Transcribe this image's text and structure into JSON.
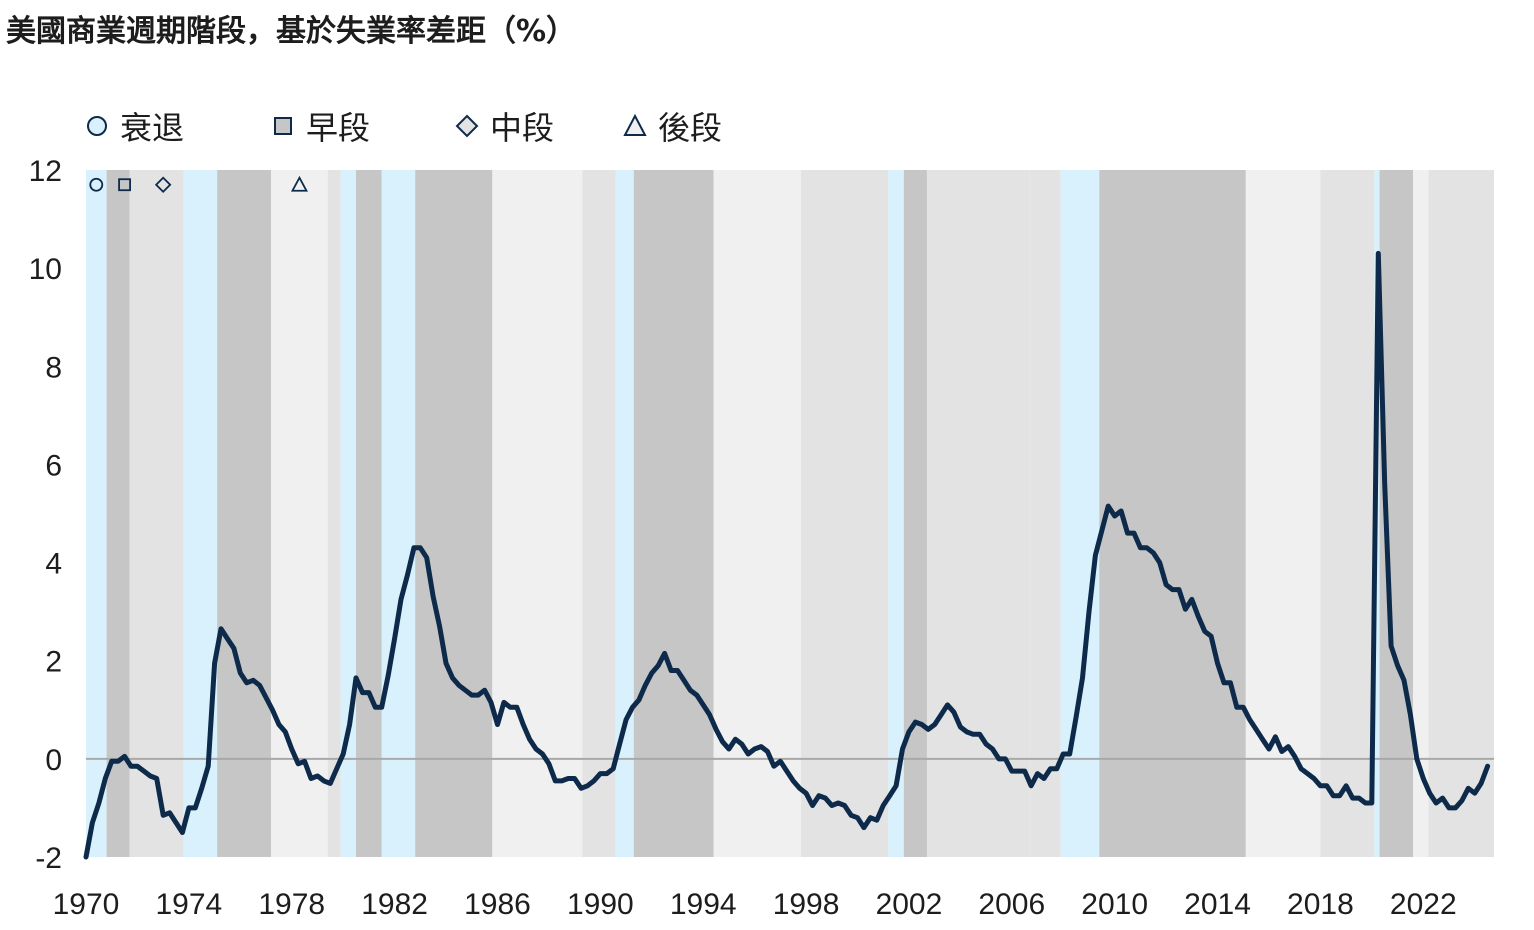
{
  "title": "美國商業週期階段，基於失業率差距（%）",
  "legend": [
    {
      "key": "recession",
      "label": "衰退",
      "marker": "circle",
      "color": "#d9f1fc"
    },
    {
      "key": "early",
      "label": "早段",
      "marker": "square",
      "color": "#c6c6c6"
    },
    {
      "key": "mid",
      "label": "中段",
      "marker": "diamond",
      "color": "#e3e3e3"
    },
    {
      "key": "late",
      "label": "後段",
      "marker": "triangle",
      "color": "#f0f0f0"
    }
  ],
  "chart_data": {
    "type": "line",
    "title": "美國商業週期階段，基於失業率差距（%）",
    "xlabel": "",
    "ylabel": "",
    "x_ticks": [
      "1970",
      "1974",
      "1978",
      "1982",
      "1986",
      "1990",
      "1994",
      "1998",
      "2002",
      "2006",
      "2010",
      "2014",
      "2018",
      "2022"
    ],
    "y_ticks": [
      "-2",
      "0",
      "2",
      "4",
      "6",
      "8",
      "10",
      "12"
    ],
    "xlim": [
      1970,
      2024.75
    ],
    "ylim": [
      -2,
      12
    ],
    "line_color": "#0d2a4a",
    "phases": [
      {
        "phase": "recession",
        "start": 1970.0,
        "end": 1970.8
      },
      {
        "phase": "early",
        "start": 1970.8,
        "end": 1971.7
      },
      {
        "phase": "mid",
        "start": 1971.7,
        "end": 1973.8
      },
      {
        "phase": "recession",
        "start": 1973.8,
        "end": 1975.1
      },
      {
        "phase": "early",
        "start": 1975.1,
        "end": 1977.2
      },
      {
        "phase": "late",
        "start": 1977.2,
        "end": 1979.4
      },
      {
        "phase": "mid",
        "start": 1979.4,
        "end": 1979.9
      },
      {
        "phase": "recession",
        "start": 1979.9,
        "end": 1980.5
      },
      {
        "phase": "early",
        "start": 1980.5,
        "end": 1981.5
      },
      {
        "phase": "recession",
        "start": 1981.5,
        "end": 1982.8
      },
      {
        "phase": "early",
        "start": 1982.8,
        "end": 1985.8
      },
      {
        "phase": "late",
        "start": 1985.8,
        "end": 1989.3
      },
      {
        "phase": "mid",
        "start": 1989.3,
        "end": 1990.6
      },
      {
        "phase": "recession",
        "start": 1990.6,
        "end": 1991.3
      },
      {
        "phase": "early",
        "start": 1991.3,
        "end": 1994.4
      },
      {
        "phase": "late",
        "start": 1994.4,
        "end": 1997.8
      },
      {
        "phase": "mid",
        "start": 1997.8,
        "end": 2001.2
      },
      {
        "phase": "recession",
        "start": 2001.2,
        "end": 2001.8
      },
      {
        "phase": "early",
        "start": 2001.8,
        "end": 2002.7
      },
      {
        "phase": "mid",
        "start": 2002.7,
        "end": 2006.7
      },
      {
        "phase": "mid",
        "start": 2006.7,
        "end": 2007.9
      },
      {
        "phase": "recession",
        "start": 2007.9,
        "end": 2009.4
      },
      {
        "phase": "early",
        "start": 2009.4,
        "end": 2015.1
      },
      {
        "phase": "late",
        "start": 2015.1,
        "end": 2018.0
      },
      {
        "phase": "mid",
        "start": 2018.0,
        "end": 2020.1
      },
      {
        "phase": "recession",
        "start": 2020.1,
        "end": 2020.3
      },
      {
        "phase": "early",
        "start": 2020.3,
        "end": 2021.6
      },
      {
        "phase": "late",
        "start": 2021.6,
        "end": 2022.2
      },
      {
        "phase": "mid",
        "start": 2022.2,
        "end": 2024.75
      }
    ],
    "series": [
      {
        "name": "失業率差距",
        "points": [
          [
            1970.0,
            -2.0
          ],
          [
            1970.25,
            -1.3
          ],
          [
            1970.5,
            -0.9
          ],
          [
            1970.75,
            -0.4
          ],
          [
            1971.0,
            -0.05
          ],
          [
            1971.25,
            -0.05
          ],
          [
            1971.5,
            0.05
          ],
          [
            1971.75,
            -0.15
          ],
          [
            1972.0,
            -0.15
          ],
          [
            1972.25,
            -0.25
          ],
          [
            1972.5,
            -0.35
          ],
          [
            1972.75,
            -0.4
          ],
          [
            1973.0,
            -1.15
          ],
          [
            1973.25,
            -1.1
          ],
          [
            1973.5,
            -1.3
          ],
          [
            1973.75,
            -1.5
          ],
          [
            1974.0,
            -1.0
          ],
          [
            1974.25,
            -1.0
          ],
          [
            1974.5,
            -0.6
          ],
          [
            1974.75,
            -0.15
          ],
          [
            1975.0,
            1.95
          ],
          [
            1975.25,
            2.65
          ],
          [
            1975.5,
            2.45
          ],
          [
            1975.75,
            2.25
          ],
          [
            1976.0,
            1.75
          ],
          [
            1976.25,
            1.55
          ],
          [
            1976.5,
            1.6
          ],
          [
            1976.75,
            1.5
          ],
          [
            1977.0,
            1.25
          ],
          [
            1977.25,
            1.0
          ],
          [
            1977.5,
            0.7
          ],
          [
            1977.75,
            0.55
          ],
          [
            1978.0,
            0.2
          ],
          [
            1978.25,
            -0.1
          ],
          [
            1978.5,
            -0.05
          ],
          [
            1978.75,
            -0.4
          ],
          [
            1979.0,
            -0.35
          ],
          [
            1979.25,
            -0.45
          ],
          [
            1979.5,
            -0.5
          ],
          [
            1979.75,
            -0.2
          ],
          [
            1980.0,
            0.1
          ],
          [
            1980.25,
            0.7
          ],
          [
            1980.5,
            1.65
          ],
          [
            1980.75,
            1.35
          ],
          [
            1981.0,
            1.35
          ],
          [
            1981.25,
            1.05
          ],
          [
            1981.5,
            1.05
          ],
          [
            1981.75,
            1.7
          ],
          [
            1982.0,
            2.45
          ],
          [
            1982.25,
            3.25
          ],
          [
            1982.5,
            3.75
          ],
          [
            1982.75,
            4.3
          ],
          [
            1983.0,
            4.3
          ],
          [
            1983.25,
            4.1
          ],
          [
            1983.5,
            3.3
          ],
          [
            1983.75,
            2.7
          ],
          [
            1984.0,
            1.95
          ],
          [
            1984.25,
            1.65
          ],
          [
            1984.5,
            1.5
          ],
          [
            1984.75,
            1.4
          ],
          [
            1985.0,
            1.3
          ],
          [
            1985.25,
            1.3
          ],
          [
            1985.5,
            1.4
          ],
          [
            1985.75,
            1.15
          ],
          [
            1986.0,
            0.7
          ],
          [
            1986.25,
            1.15
          ],
          [
            1986.5,
            1.05
          ],
          [
            1986.75,
            1.05
          ],
          [
            1987.0,
            0.7
          ],
          [
            1987.25,
            0.4
          ],
          [
            1987.5,
            0.2
          ],
          [
            1987.75,
            0.1
          ],
          [
            1988.0,
            -0.1
          ],
          [
            1988.25,
            -0.45
          ],
          [
            1988.5,
            -0.45
          ],
          [
            1988.75,
            -0.4
          ],
          [
            1989.0,
            -0.4
          ],
          [
            1989.25,
            -0.6
          ],
          [
            1989.5,
            -0.55
          ],
          [
            1989.75,
            -0.45
          ],
          [
            1990.0,
            -0.3
          ],
          [
            1990.25,
            -0.3
          ],
          [
            1990.5,
            -0.2
          ],
          [
            1990.75,
            0.3
          ],
          [
            1991.0,
            0.8
          ],
          [
            1991.25,
            1.05
          ],
          [
            1991.5,
            1.2
          ],
          [
            1991.75,
            1.5
          ],
          [
            1992.0,
            1.75
          ],
          [
            1992.25,
            1.9
          ],
          [
            1992.5,
            2.15
          ],
          [
            1992.75,
            1.8
          ],
          [
            1993.0,
            1.8
          ],
          [
            1993.25,
            1.6
          ],
          [
            1993.5,
            1.4
          ],
          [
            1993.75,
            1.3
          ],
          [
            1994.0,
            1.1
          ],
          [
            1994.25,
            0.9
          ],
          [
            1994.5,
            0.6
          ],
          [
            1994.75,
            0.35
          ],
          [
            1995.0,
            0.2
          ],
          [
            1995.25,
            0.4
          ],
          [
            1995.5,
            0.3
          ],
          [
            1995.75,
            0.1
          ],
          [
            1996.0,
            0.2
          ],
          [
            1996.25,
            0.25
          ],
          [
            1996.5,
            0.15
          ],
          [
            1996.75,
            -0.15
          ],
          [
            1997.0,
            -0.05
          ],
          [
            1997.25,
            -0.25
          ],
          [
            1997.5,
            -0.45
          ],
          [
            1997.75,
            -0.6
          ],
          [
            1998.0,
            -0.7
          ],
          [
            1998.25,
            -0.95
          ],
          [
            1998.5,
            -0.75
          ],
          [
            1998.75,
            -0.8
          ],
          [
            1999.0,
            -0.95
          ],
          [
            1999.25,
            -0.9
          ],
          [
            1999.5,
            -0.95
          ],
          [
            1999.75,
            -1.15
          ],
          [
            2000.0,
            -1.2
          ],
          [
            2000.25,
            -1.4
          ],
          [
            2000.5,
            -1.2
          ],
          [
            2000.75,
            -1.25
          ],
          [
            2001.0,
            -0.95
          ],
          [
            2001.25,
            -0.75
          ],
          [
            2001.5,
            -0.55
          ],
          [
            2001.75,
            0.2
          ],
          [
            2002.0,
            0.55
          ],
          [
            2002.25,
            0.75
          ],
          [
            2002.5,
            0.7
          ],
          [
            2002.75,
            0.6
          ],
          [
            2003.0,
            0.7
          ],
          [
            2003.25,
            0.9
          ],
          [
            2003.5,
            1.1
          ],
          [
            2003.75,
            0.95
          ],
          [
            2004.0,
            0.65
          ],
          [
            2004.25,
            0.55
          ],
          [
            2004.5,
            0.5
          ],
          [
            2004.75,
            0.5
          ],
          [
            2005.0,
            0.3
          ],
          [
            2005.25,
            0.2
          ],
          [
            2005.5,
            0.0
          ],
          [
            2005.75,
            0.0
          ],
          [
            2006.0,
            -0.25
          ],
          [
            2006.25,
            -0.25
          ],
          [
            2006.5,
            -0.25
          ],
          [
            2006.75,
            -0.55
          ],
          [
            2007.0,
            -0.3
          ],
          [
            2007.25,
            -0.4
          ],
          [
            2007.5,
            -0.2
          ],
          [
            2007.75,
            -0.2
          ],
          [
            2008.0,
            0.1
          ],
          [
            2008.25,
            0.1
          ],
          [
            2008.5,
            0.85
          ],
          [
            2008.75,
            1.65
          ],
          [
            2009.0,
            3.0
          ],
          [
            2009.25,
            4.15
          ],
          [
            2009.5,
            4.65
          ],
          [
            2009.75,
            5.15
          ],
          [
            2010.0,
            4.95
          ],
          [
            2010.25,
            5.05
          ],
          [
            2010.5,
            4.6
          ],
          [
            2010.75,
            4.6
          ],
          [
            2011.0,
            4.3
          ],
          [
            2011.25,
            4.3
          ],
          [
            2011.5,
            4.2
          ],
          [
            2011.75,
            4.0
          ],
          [
            2012.0,
            3.55
          ],
          [
            2012.25,
            3.45
          ],
          [
            2012.5,
            3.45
          ],
          [
            2012.75,
            3.05
          ],
          [
            2013.0,
            3.25
          ],
          [
            2013.25,
            2.9
          ],
          [
            2013.5,
            2.6
          ],
          [
            2013.75,
            2.5
          ],
          [
            2014.0,
            1.95
          ],
          [
            2014.25,
            1.55
          ],
          [
            2014.5,
            1.55
          ],
          [
            2014.75,
            1.05
          ],
          [
            2015.0,
            1.05
          ],
          [
            2015.25,
            0.8
          ],
          [
            2015.5,
            0.6
          ],
          [
            2015.75,
            0.4
          ],
          [
            2016.0,
            0.2
          ],
          [
            2016.25,
            0.45
          ],
          [
            2016.5,
            0.15
          ],
          [
            2016.75,
            0.25
          ],
          [
            2017.0,
            0.05
          ],
          [
            2017.25,
            -0.2
          ],
          [
            2017.5,
            -0.3
          ],
          [
            2017.75,
            -0.4
          ],
          [
            2018.0,
            -0.55
          ],
          [
            2018.25,
            -0.55
          ],
          [
            2018.5,
            -0.75
          ],
          [
            2018.75,
            -0.75
          ],
          [
            2019.0,
            -0.55
          ],
          [
            2019.25,
            -0.8
          ],
          [
            2019.5,
            -0.8
          ],
          [
            2019.75,
            -0.9
          ],
          [
            2020.0,
            -0.9
          ],
          [
            2020.25,
            10.3
          ],
          [
            2020.5,
            5.6
          ],
          [
            2020.75,
            2.3
          ],
          [
            2021.0,
            1.9
          ],
          [
            2021.25,
            1.6
          ],
          [
            2021.5,
            0.9
          ],
          [
            2021.75,
            0.0
          ],
          [
            2022.0,
            -0.4
          ],
          [
            2022.25,
            -0.7
          ],
          [
            2022.5,
            -0.9
          ],
          [
            2022.75,
            -0.8
          ],
          [
            2023.0,
            -1.0
          ],
          [
            2023.25,
            -1.0
          ],
          [
            2023.5,
            -0.85
          ],
          [
            2023.75,
            -0.6
          ],
          [
            2024.0,
            -0.7
          ],
          [
            2024.25,
            -0.5
          ],
          [
            2024.5,
            -0.15
          ]
        ]
      }
    ],
    "phase_markers": [
      {
        "phase": "recession",
        "x": 1970.4,
        "y": 11.7
      },
      {
        "phase": "early",
        "x": 1971.5,
        "y": 11.7
      },
      {
        "phase": "mid",
        "x": 1973.0,
        "y": 11.7
      },
      {
        "phase": "late",
        "x": 1978.3,
        "y": 11.7
      }
    ]
  }
}
